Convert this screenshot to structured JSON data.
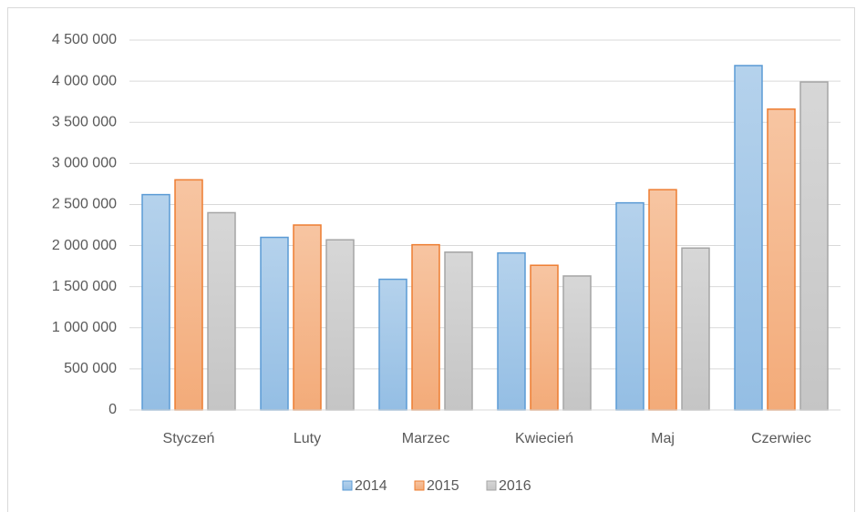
{
  "chart_data": {
    "type": "bar",
    "categories": [
      "Styczeń",
      "Luty",
      "Marzec",
      "Kwiecień",
      "Maj",
      "Czerwiec"
    ],
    "series": [
      {
        "name": "2014",
        "color": "#5b9bd5",
        "values": [
          2620000,
          2100000,
          1590000,
          1910000,
          2520000,
          4190000
        ]
      },
      {
        "name": "2015",
        "color": "#ed7d31",
        "values": [
          2800000,
          2250000,
          2010000,
          1760000,
          2680000,
          3660000
        ]
      },
      {
        "name": "2016",
        "color": "#a5a5a5",
        "values": [
          2400000,
          2070000,
          1920000,
          1630000,
          1970000,
          3990000
        ]
      }
    ],
    "ylim": [
      0,
      4500000
    ],
    "yticks": [
      0,
      {
        "value": 500000,
        "label": "500 000"
      },
      {
        "value": 1000000,
        "label": "1 000 000"
      },
      {
        "value": 1500000,
        "label": "1 500 000"
      },
      {
        "value": 2000000,
        "label": "2 000 000"
      },
      {
        "value": 2500000,
        "label": "2 500 000"
      },
      {
        "value": 3000000,
        "label": "3 000 000"
      },
      {
        "value": 3500000,
        "label": "3 500 000"
      },
      {
        "value": 4000000,
        "label": "4 000 000"
      },
      {
        "value": 4500000,
        "label": "4 500 000"
      }
    ],
    "grid": true,
    "legend": "bottom"
  }
}
